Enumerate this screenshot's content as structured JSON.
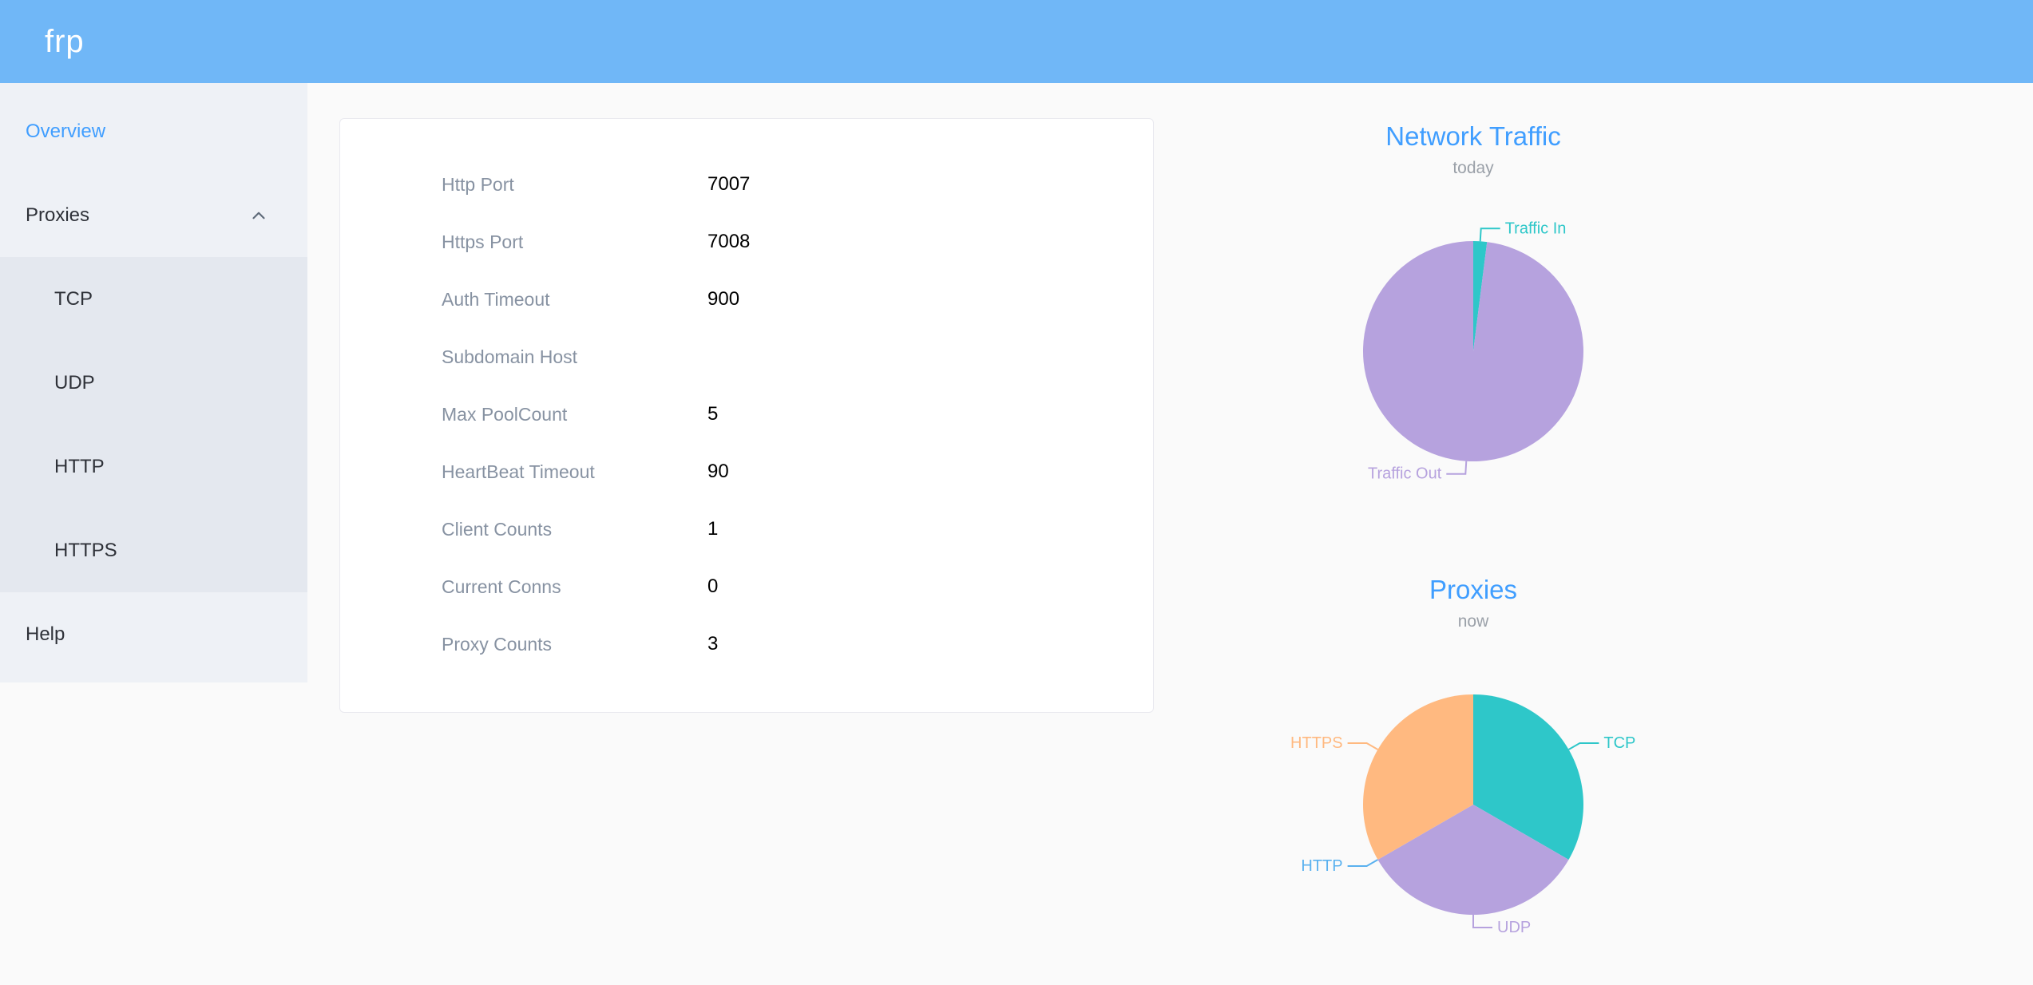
{
  "header": {
    "logo": "frp"
  },
  "sidebar": {
    "items": [
      {
        "label": "Overview",
        "active": true
      },
      {
        "label": "Proxies",
        "expanded": true
      },
      {
        "label": "TCP"
      },
      {
        "label": "UDP"
      },
      {
        "label": "HTTP"
      },
      {
        "label": "HTTPS"
      },
      {
        "label": "Help"
      }
    ]
  },
  "server_info": {
    "rows": [
      {
        "label": "Http Port",
        "value": "7007"
      },
      {
        "label": "Https Port",
        "value": "7008"
      },
      {
        "label": "Auth Timeout",
        "value": "900"
      },
      {
        "label": "Subdomain Host",
        "value": ""
      },
      {
        "label": "Max PoolCount",
        "value": "5"
      },
      {
        "label": "HeartBeat Timeout",
        "value": "90"
      },
      {
        "label": "Client Counts",
        "value": "1"
      },
      {
        "label": "Current Conns",
        "value": "0"
      },
      {
        "label": "Proxy Counts",
        "value": "3"
      }
    ]
  },
  "chart_data": [
    {
      "type": "pie",
      "title": "Network Traffic",
      "subtitle": "today",
      "legend_position": "outside-labels",
      "slices": [
        {
          "label": "Traffic In",
          "value": 2,
          "color": "#2ec7c9"
        },
        {
          "label": "Traffic Out",
          "value": 98,
          "color": "#b6a2de"
        }
      ]
    },
    {
      "type": "pie",
      "title": "Proxies",
      "subtitle": "now",
      "legend_position": "outside-labels",
      "slices": [
        {
          "label": "TCP",
          "value": 1,
          "color": "#2ec7c9"
        },
        {
          "label": "UDP",
          "value": 1,
          "color": "#b6a2de"
        },
        {
          "label": "HTTP",
          "value": 0,
          "color": "#5ab1ef"
        },
        {
          "label": "HTTPS",
          "value": 1,
          "color": "#ffb980"
        }
      ]
    }
  ],
  "colors": {
    "header_bg": "#70b7f7",
    "sidebar_bg": "#eef1f6",
    "submenu_bg": "#e4e8ef",
    "accent": "#409eff",
    "label_gray": "#8792a2",
    "subtitle_gray": "#9aa0a8",
    "pie_teal": "#2ec7c9",
    "pie_purple": "#b6a2de",
    "pie_blue": "#5ab1ef",
    "pie_orange": "#ffb980"
  }
}
